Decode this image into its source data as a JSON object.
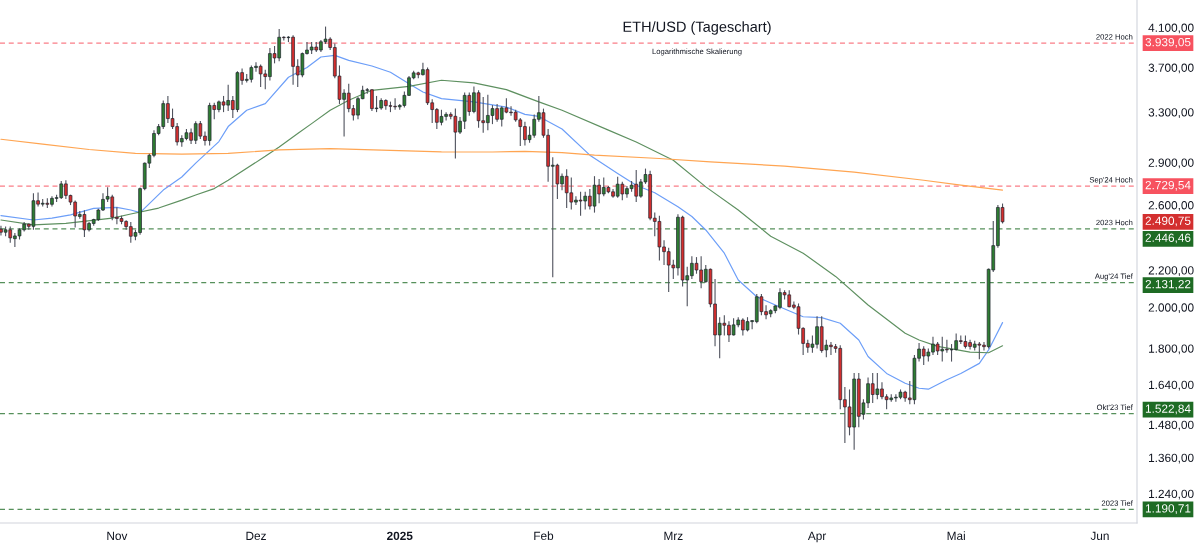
{
  "chart_data": {
    "type": "candlestick",
    "title": "ETH/USD (Tageschart)",
    "subtitle": "Logarithmische Skalierung",
    "x": [
      "2024-10-07",
      "2024-10-08",
      "2024-10-09",
      "2024-10-10",
      "2024-10-11",
      "2024-10-12",
      "2024-10-13",
      "2024-10-14",
      "2024-10-15",
      "2024-10-16",
      "2024-10-17",
      "2024-10-18",
      "2024-10-19",
      "2024-10-20",
      "2024-10-21",
      "2024-10-22",
      "2024-10-23",
      "2024-10-24",
      "2024-10-25",
      "2024-10-26",
      "2024-10-27",
      "2024-10-28",
      "2024-10-29",
      "2024-10-30",
      "2024-10-31",
      "2024-11-01",
      "2024-11-02",
      "2024-11-03",
      "2024-11-04",
      "2024-11-05",
      "2024-11-06",
      "2024-11-07",
      "2024-11-08",
      "2024-11-09",
      "2024-11-10",
      "2024-11-11",
      "2024-11-12",
      "2024-11-13",
      "2024-11-14",
      "2024-11-15",
      "2024-11-16",
      "2024-11-17",
      "2024-11-18",
      "2024-11-19",
      "2024-11-20",
      "2024-11-21",
      "2024-11-22",
      "2024-11-23",
      "2024-11-24",
      "2024-11-25",
      "2024-11-26",
      "2024-11-27",
      "2024-11-28",
      "2024-11-29",
      "2024-11-30",
      "2024-12-01",
      "2024-12-02",
      "2024-12-03",
      "2024-12-04",
      "2024-12-05",
      "2024-12-06",
      "2024-12-07",
      "2024-12-08",
      "2024-12-09",
      "2024-12-10",
      "2024-12-11",
      "2024-12-12",
      "2024-12-13",
      "2024-12-14",
      "2024-12-15",
      "2024-12-16",
      "2024-12-17",
      "2024-12-18",
      "2024-12-19",
      "2024-12-20",
      "2024-12-21",
      "2024-12-22",
      "2024-12-23",
      "2024-12-24",
      "2024-12-25",
      "2024-12-26",
      "2024-12-27",
      "2024-12-28",
      "2024-12-29",
      "2024-12-30",
      "2024-12-31",
      "2025-01-01",
      "2025-01-02",
      "2025-01-03",
      "2025-01-04",
      "2025-01-05",
      "2025-01-06",
      "2025-01-07",
      "2025-01-08",
      "2025-01-09",
      "2025-01-10",
      "2025-01-11",
      "2025-01-12",
      "2025-01-13",
      "2025-01-14",
      "2025-01-15",
      "2025-01-16",
      "2025-01-17",
      "2025-01-18",
      "2025-01-19",
      "2025-01-20",
      "2025-01-21",
      "2025-01-22",
      "2025-01-23",
      "2025-01-24",
      "2025-01-25",
      "2025-01-26",
      "2025-01-27",
      "2025-01-28",
      "2025-01-29",
      "2025-01-30",
      "2025-01-31",
      "2025-02-01",
      "2025-02-02",
      "2025-02-03",
      "2025-02-04",
      "2025-02-05",
      "2025-02-06",
      "2025-02-07",
      "2025-02-08",
      "2025-02-09",
      "2025-02-10",
      "2025-02-11",
      "2025-02-12",
      "2025-02-13",
      "2025-02-14",
      "2025-02-15",
      "2025-02-16",
      "2025-02-17",
      "2025-02-18",
      "2025-02-19",
      "2025-02-20",
      "2025-02-21",
      "2025-02-22",
      "2025-02-23",
      "2025-02-24",
      "2025-02-25",
      "2025-02-26",
      "2025-02-27",
      "2025-02-28",
      "2025-03-01",
      "2025-03-02",
      "2025-03-03",
      "2025-03-04",
      "2025-03-05",
      "2025-03-06",
      "2025-03-07",
      "2025-03-08",
      "2025-03-09",
      "2025-03-10",
      "2025-03-11",
      "2025-03-12",
      "2025-03-13",
      "2025-03-14",
      "2025-03-15",
      "2025-03-16",
      "2025-03-17",
      "2025-03-18",
      "2025-03-19",
      "2025-03-20",
      "2025-03-21",
      "2025-03-22",
      "2025-03-23",
      "2025-03-24",
      "2025-03-25",
      "2025-03-26",
      "2025-03-27",
      "2025-03-28",
      "2025-03-29",
      "2025-03-30",
      "2025-03-31",
      "2025-04-01",
      "2025-04-02",
      "2025-04-03",
      "2025-04-04",
      "2025-04-05",
      "2025-04-06",
      "2025-04-07",
      "2025-04-08",
      "2025-04-09",
      "2025-04-10",
      "2025-04-11",
      "2025-04-12",
      "2025-04-13",
      "2025-04-14",
      "2025-04-15",
      "2025-04-16",
      "2025-04-17",
      "2025-04-18",
      "2025-04-19",
      "2025-04-20",
      "2025-04-21",
      "2025-04-22",
      "2025-04-23",
      "2025-04-24",
      "2025-04-25",
      "2025-04-26",
      "2025-04-27",
      "2025-04-28",
      "2025-04-29",
      "2025-04-30",
      "2025-05-01",
      "2025-05-02",
      "2025-05-03",
      "2025-05-04",
      "2025-05-05",
      "2025-05-06",
      "2025-05-07",
      "2025-05-08",
      "2025-05-09",
      "2025-05-10",
      "2025-05-11"
    ],
    "ohlc": [
      [
        2444,
        2465,
        2405,
        2425
      ],
      [
        2425,
        2460,
        2400,
        2440
      ],
      [
        2440,
        2460,
        2360,
        2390
      ],
      [
        2385,
        2420,
        2335,
        2402
      ],
      [
        2402,
        2450,
        2380,
        2440
      ],
      [
        2440,
        2490,
        2430,
        2476
      ],
      [
        2476,
        2480,
        2440,
        2462
      ],
      [
        2462,
        2680,
        2440,
        2629
      ],
      [
        2629,
        2685,
        2590,
        2606
      ],
      [
        2606,
        2640,
        2590,
        2612
      ],
      [
        2612,
        2645,
        2580,
        2605
      ],
      [
        2605,
        2660,
        2590,
        2645
      ],
      [
        2645,
        2670,
        2620,
        2650
      ],
      [
        2650,
        2765,
        2640,
        2745
      ],
      [
        2745,
        2770,
        2640,
        2665
      ],
      [
        2665,
        2670,
        2600,
        2620
      ],
      [
        2620,
        2630,
        2455,
        2528
      ],
      [
        2525,
        2560,
        2510,
        2538
      ],
      [
        2538,
        2565,
        2395,
        2440
      ],
      [
        2440,
        2490,
        2430,
        2480
      ],
      [
        2480,
        2510,
        2465,
        2505
      ],
      [
        2505,
        2575,
        2495,
        2567
      ],
      [
        2567,
        2680,
        2560,
        2638
      ],
      [
        2640,
        2722,
        2620,
        2658
      ],
      [
        2655,
        2670,
        2500,
        2520
      ],
      [
        2520,
        2585,
        2475,
        2512
      ],
      [
        2512,
        2530,
        2475,
        2493
      ],
      [
        2493,
        2500,
        2440,
        2460
      ],
      [
        2460,
        2490,
        2360,
        2400
      ],
      [
        2400,
        2440,
        2375,
        2423
      ],
      [
        2423,
        2720,
        2410,
        2712
      ],
      [
        2712,
        2900,
        2700,
        2895
      ],
      [
        2895,
        2965,
        2860,
        2954
      ],
      [
        2954,
        3150,
        2940,
        3124
      ],
      [
        3124,
        3200,
        3110,
        3180
      ],
      [
        3180,
        3400,
        3160,
        3373
      ],
      [
        3373,
        3440,
        3210,
        3246
      ],
      [
        3246,
        3330,
        3160,
        3180
      ],
      [
        3180,
        3210,
        3030,
        3057
      ],
      [
        3057,
        3110,
        3020,
        3084
      ],
      [
        3084,
        3160,
        3070,
        3130
      ],
      [
        3130,
        3165,
        3040,
        3070
      ],
      [
        3070,
        3224,
        3040,
        3204
      ],
      [
        3204,
        3225,
        3080,
        3103
      ],
      [
        3103,
        3140,
        3030,
        3068
      ],
      [
        3068,
        3380,
        3030,
        3357
      ],
      [
        3357,
        3380,
        3240,
        3322
      ],
      [
        3322,
        3400,
        3300,
        3388
      ],
      [
        3388,
        3440,
        3300,
        3360
      ],
      [
        3360,
        3540,
        3310,
        3400
      ],
      [
        3400,
        3440,
        3250,
        3322
      ],
      [
        3322,
        3665,
        3300,
        3652
      ],
      [
        3652,
        3690,
        3540,
        3580
      ],
      [
        3580,
        3640,
        3560,
        3590
      ],
      [
        3590,
        3720,
        3560,
        3700
      ],
      [
        3700,
        3750,
        3660,
        3712
      ],
      [
        3712,
        3730,
        3520,
        3640
      ],
      [
        3640,
        3680,
        3500,
        3615
      ],
      [
        3615,
        3890,
        3580,
        3835
      ],
      [
        3835,
        3910,
        3740,
        3792
      ],
      [
        3792,
        4085,
        3760,
        3999
      ],
      [
        3999,
        4010,
        3965,
        3995
      ],
      [
        3995,
        4010,
        3950,
        4000
      ],
      [
        4000,
        4020,
        3540,
        3711
      ],
      [
        3711,
        3780,
        3520,
        3630
      ],
      [
        3630,
        3845,
        3610,
        3835
      ],
      [
        3835,
        3950,
        3825,
        3870
      ],
      [
        3870,
        3950,
        3830,
        3900
      ],
      [
        3900,
        3950,
        3850,
        3870
      ],
      [
        3870,
        3970,
        3850,
        3953
      ],
      [
        3953,
        4110,
        3930,
        3980
      ],
      [
        3980,
        4000,
        3870,
        3895
      ],
      [
        3895,
        3935,
        3600,
        3620
      ],
      [
        3620,
        3720,
        3370,
        3410
      ],
      [
        3410,
        3500,
        3100,
        3465
      ],
      [
        3465,
        3550,
        3300,
        3330
      ],
      [
        3330,
        3360,
        3230,
        3275
      ],
      [
        3275,
        3430,
        3240,
        3416
      ],
      [
        3416,
        3530,
        3410,
        3490
      ],
      [
        3490,
        3510,
        3460,
        3495
      ],
      [
        3495,
        3500,
        3310,
        3330
      ],
      [
        3330,
        3440,
        3300,
        3335
      ],
      [
        3335,
        3420,
        3320,
        3400
      ],
      [
        3400,
        3410,
        3320,
        3355
      ],
      [
        3355,
        3390,
        3300,
        3350
      ],
      [
        3350,
        3420,
        3320,
        3345
      ],
      [
        3345,
        3370,
        3320,
        3357
      ],
      [
        3357,
        3480,
        3340,
        3445
      ],
      [
        3445,
        3620,
        3440,
        3604
      ],
      [
        3604,
        3670,
        3590,
        3650
      ],
      [
        3650,
        3660,
        3600,
        3633
      ],
      [
        3633,
        3745,
        3625,
        3680
      ],
      [
        3680,
        3700,
        3360,
        3380
      ],
      [
        3380,
        3410,
        3210,
        3322
      ],
      [
        3322,
        3335,
        3160,
        3215
      ],
      [
        3215,
        3320,
        3190,
        3264
      ],
      [
        3264,
        3300,
        3230,
        3281
      ],
      [
        3281,
        3300,
        3240,
        3265
      ],
      [
        3265,
        3330,
        2930,
        3135
      ],
      [
        3135,
        3260,
        3120,
        3224
      ],
      [
        3224,
        3470,
        3160,
        3445
      ],
      [
        3445,
        3470,
        3270,
        3305
      ],
      [
        3305,
        3525,
        3290,
        3468
      ],
      [
        3468,
        3490,
        3170,
        3228
      ],
      [
        3228,
        3430,
        3130,
        3212
      ],
      [
        3212,
        3450,
        3150,
        3272
      ],
      [
        3272,
        3360,
        3200,
        3330
      ],
      [
        3330,
        3370,
        3220,
        3240
      ],
      [
        3240,
        3350,
        3180,
        3336
      ],
      [
        3336,
        3420,
        3290,
        3300
      ],
      [
        3300,
        3350,
        3270,
        3295
      ],
      [
        3300,
        3320,
        3220,
        3235
      ],
      [
        3235,
        3250,
        3025,
        3180
      ],
      [
        3180,
        3220,
        3030,
        3075
      ],
      [
        3075,
        3180,
        3050,
        3110
      ],
      [
        3110,
        3280,
        3090,
        3240
      ],
      [
        3240,
        3440,
        3220,
        3295
      ],
      [
        3295,
        3330,
        3090,
        3110
      ],
      [
        3110,
        3160,
        2760,
        2872
      ],
      [
        2872,
        2940,
        2160,
        2880
      ],
      [
        2880,
        2890,
        2640,
        2745
      ],
      [
        2745,
        2820,
        2700,
        2799
      ],
      [
        2799,
        2850,
        2580,
        2683
      ],
      [
        2683,
        2790,
        2570,
        2620
      ],
      [
        2620,
        2660,
        2600,
        2633
      ],
      [
        2633,
        2690,
        2530,
        2627
      ],
      [
        2627,
        2690,
        2570,
        2660
      ],
      [
        2660,
        2710,
        2570,
        2593
      ],
      [
        2593,
        2800,
        2550,
        2736
      ],
      [
        2736,
        2780,
        2612,
        2675
      ],
      [
        2675,
        2790,
        2660,
        2720
      ],
      [
        2720,
        2730,
        2680,
        2690
      ],
      [
        2690,
        2710,
        2650,
        2660
      ],
      [
        2660,
        2795,
        2650,
        2743
      ],
      [
        2743,
        2760,
        2633,
        2675
      ],
      [
        2675,
        2730,
        2650,
        2712
      ],
      [
        2712,
        2765,
        2690,
        2736
      ],
      [
        2743,
        2845,
        2620,
        2660
      ],
      [
        2660,
        2780,
        2650,
        2759
      ],
      [
        2759,
        2855,
        2745,
        2812
      ],
      [
        2812,
        2840,
        2500,
        2514
      ],
      [
        2514,
        2550,
        2400,
        2493
      ],
      [
        2493,
        2530,
        2255,
        2335
      ],
      [
        2335,
        2375,
        2230,
        2307
      ],
      [
        2307,
        2330,
        2080,
        2229
      ],
      [
        2229,
        2260,
        2150,
        2213
      ],
      [
        2213,
        2540,
        2170,
        2520
      ],
      [
        2520,
        2530,
        2110,
        2145
      ],
      [
        2145,
        2220,
        2005,
        2169
      ],
      [
        2169,
        2280,
        2150,
        2239
      ],
      [
        2239,
        2275,
        2180,
        2201
      ],
      [
        2201,
        2280,
        2100,
        2136
      ],
      [
        2136,
        2230,
        2130,
        2205
      ],
      [
        2205,
        2210,
        2000,
        2017
      ],
      [
        2017,
        2150,
        1810,
        1863
      ],
      [
        1863,
        1950,
        1755,
        1920
      ],
      [
        1920,
        1960,
        1860,
        1910
      ],
      [
        1910,
        1930,
        1830,
        1863
      ],
      [
        1863,
        1945,
        1860,
        1912
      ],
      [
        1912,
        1950,
        1900,
        1936
      ],
      [
        1936,
        1945,
        1860,
        1887
      ],
      [
        1887,
        1950,
        1880,
        1928
      ],
      [
        1928,
        1935,
        1890,
        1933
      ],
      [
        1928,
        2070,
        1920,
        2055
      ],
      [
        2055,
        2070,
        1960,
        1978
      ],
      [
        1978,
        2010,
        1940,
        1962
      ],
      [
        1967,
        1990,
        1950,
        1983
      ],
      [
        1983,
        2010,
        1970,
        2007
      ],
      [
        2000,
        2100,
        1990,
        2077
      ],
      [
        2077,
        2090,
        2040,
        2065
      ],
      [
        2065,
        2090,
        2000,
        2003
      ],
      [
        2012,
        2030,
        1990,
        2000
      ],
      [
        2003,
        2020,
        1865,
        1895
      ],
      [
        1895,
        1900,
        1770,
        1823
      ],
      [
        1823,
        1840,
        1780,
        1805
      ],
      [
        1805,
        1860,
        1780,
        1820
      ],
      [
        1819,
        1955,
        1800,
        1903
      ],
      [
        1903,
        1955,
        1780,
        1790
      ],
      [
        1793,
        1840,
        1760,
        1815
      ],
      [
        1815,
        1830,
        1770,
        1808
      ],
      [
        1808,
        1820,
        1780,
        1800
      ],
      [
        1800,
        1815,
        1540,
        1578
      ],
      [
        1578,
        1630,
        1412,
        1549
      ],
      [
        1549,
        1620,
        1440,
        1471
      ],
      [
        1471,
        1690,
        1388,
        1664
      ],
      [
        1664,
        1690,
        1470,
        1512
      ],
      [
        1520,
        1580,
        1500,
        1565
      ],
      [
        1565,
        1670,
        1545,
        1644
      ],
      [
        1644,
        1690,
        1565,
        1599
      ],
      [
        1599,
        1690,
        1580,
        1622
      ],
      [
        1622,
        1650,
        1580,
        1590
      ],
      [
        1590,
        1600,
        1540,
        1578
      ],
      [
        1578,
        1600,
        1570,
        1585
      ],
      [
        1585,
        1600,
        1570,
        1588
      ],
      [
        1588,
        1620,
        1580,
        1609
      ],
      [
        1609,
        1615,
        1570,
        1585
      ],
      [
        1585,
        1655,
        1560,
        1578
      ],
      [
        1578,
        1770,
        1560,
        1755
      ],
      [
        1755,
        1825,
        1740,
        1797
      ],
      [
        1797,
        1810,
        1725,
        1765
      ],
      [
        1765,
        1800,
        1740,
        1783
      ],
      [
        1783,
        1855,
        1770,
        1820
      ],
      [
        1820,
        1830,
        1770,
        1788
      ],
      [
        1788,
        1855,
        1740,
        1796
      ],
      [
        1796,
        1840,
        1780,
        1793
      ],
      [
        1793,
        1820,
        1740,
        1795
      ],
      [
        1795,
        1870,
        1790,
        1836
      ],
      [
        1836,
        1860,
        1820,
        1832
      ],
      [
        1832,
        1860,
        1800,
        1809
      ],
      [
        1827,
        1840,
        1795,
        1809
      ],
      [
        1805,
        1835,
        1790,
        1820
      ],
      [
        1820,
        1830,
        1750,
        1815
      ],
      [
        1815,
        1830,
        1790,
        1808
      ],
      [
        1808,
        2210,
        1800,
        2205
      ],
      [
        2201,
        2495,
        2190,
        2343
      ],
      [
        2343,
        2600,
        2330,
        2584
      ],
      [
        2584,
        2610,
        2480,
        2490.75
      ]
    ],
    "value_labels": [
      null,
      null,
      null,
      null,
      null,
      null,
      null,
      null,
      null,
      null,
      null,
      null,
      null,
      null,
      null,
      null,
      null,
      null,
      null,
      null,
      null,
      null,
      null,
      null,
      null,
      null,
      null,
      null,
      null,
      null,
      null,
      null,
      null,
      null,
      null,
      null,
      null,
      null,
      null,
      null,
      null,
      null,
      null,
      null,
      null,
      null,
      null,
      null,
      null,
      null,
      null,
      null,
      null,
      null,
      null,
      null,
      null,
      null,
      null,
      null,
      null,
      null,
      null,
      null,
      null,
      null,
      null,
      null,
      null,
      null,
      null,
      null,
      null,
      null,
      null,
      null,
      null,
      null,
      null,
      null,
      null,
      null,
      null,
      null,
      null,
      null,
      null,
      null,
      null,
      null,
      null,
      null,
      null,
      null,
      null,
      null,
      null,
      null,
      null,
      null,
      null,
      null,
      null,
      null,
      null,
      null,
      null,
      null,
      null,
      null,
      null,
      null,
      null,
      null,
      null,
      null,
      null,
      null,
      null,
      null,
      null,
      null,
      null,
      null,
      null,
      null,
      null,
      null,
      null,
      null,
      null,
      null,
      null,
      null,
      null,
      null,
      null,
      null,
      null,
      null,
      null,
      null,
      null,
      null,
      null,
      null,
      null,
      null,
      null,
      null,
      null,
      null,
      null,
      null,
      null,
      null,
      null,
      null,
      null,
      null,
      null,
      null,
      null,
      null,
      null,
      null,
      null,
      null,
      null,
      null,
      null,
      null,
      null,
      null,
      null,
      null,
      null,
      null,
      null,
      null,
      null,
      null,
      null,
      null,
      null,
      null,
      null,
      null,
      null,
      null,
      null,
      null,
      null,
      null,
      null,
      null,
      null,
      null,
      null,
      null,
      null,
      null,
      null,
      null,
      null,
      null,
      null,
      null,
      null,
      null,
      null,
      null,
      null,
      null,
      null,
      null,
      "2.490,75"
    ],
    "series": [
      {
        "type": "line",
        "color": "#6c9ef8",
        "x": [
          "2024-10-07",
          "2024-10-14",
          "2024-10-18",
          "2024-10-22",
          "2024-10-27",
          "2024-11-01",
          "2024-11-04",
          "2024-11-06",
          "2024-11-11",
          "2024-11-15",
          "2024-11-18",
          "2024-11-23",
          "2024-11-25",
          "2024-11-29",
          "2024-12-03",
          "2024-12-08",
          "2024-12-12",
          "2024-12-15",
          "2024-12-18",
          "2024-12-21",
          "2024-12-26",
          "2024-12-30",
          "2025-01-03",
          "2025-01-06",
          "2025-01-10",
          "2025-01-17",
          "2025-01-24",
          "2025-01-28",
          "2025-01-31",
          "2025-02-05",
          "2025-02-11",
          "2025-02-17",
          "2025-02-21",
          "2025-02-25",
          "2025-03-02",
          "2025-03-05",
          "2025-03-08",
          "2025-03-12",
          "2025-03-15",
          "2025-03-19",
          "2025-03-23",
          "2025-03-29",
          "2025-04-02",
          "2025-04-06",
          "2025-04-10",
          "2025-04-12",
          "2025-04-16",
          "2025-04-20",
          "2025-04-23",
          "2025-04-25",
          "2025-04-29",
          "2025-05-02",
          "2025-05-06",
          "2025-05-08",
          "2025-05-11"
        ],
        "values": [
          2530,
          2502,
          2514,
          2535,
          2578,
          2585,
          2567,
          2550,
          2702,
          2794,
          2895,
          3060,
          3180,
          3316,
          3373,
          3609,
          3700,
          3801,
          3817,
          3769,
          3715,
          3655,
          3550,
          3475,
          3416,
          3388,
          3343,
          3281,
          3264,
          3160,
          2955,
          2820,
          2736,
          2683,
          2588,
          2525,
          2439,
          2298,
          2145,
          2055,
          2012,
          1952,
          1948,
          1920,
          1839,
          1763,
          1688,
          1646,
          1625,
          1621,
          1661,
          1688,
          1732,
          1793,
          1923
        ]
      },
      {
        "type": "line",
        "color": "#5e9060",
        "x": [
          "2024-10-07",
          "2024-10-14",
          "2024-10-21",
          "2024-10-31",
          "2024-11-04",
          "2024-11-10",
          "2024-11-15",
          "2024-11-18",
          "2024-11-22",
          "2024-11-25",
          "2024-12-03",
          "2024-12-06",
          "2024-12-10",
          "2024-12-13",
          "2024-12-17",
          "2024-12-21",
          "2024-12-26",
          "2025-01-03",
          "2025-01-10",
          "2025-01-17",
          "2025-01-24",
          "2025-01-31",
          "2025-02-05",
          "2025-02-15",
          "2025-02-21",
          "2025-03-01",
          "2025-03-08",
          "2025-03-15",
          "2025-03-22",
          "2025-03-29",
          "2025-04-05",
          "2025-04-12",
          "2025-04-20",
          "2025-04-23",
          "2025-04-27",
          "2025-05-04",
          "2025-05-08",
          "2025-05-11"
        ],
        "values": [
          2502,
          2471,
          2481,
          2514,
          2541,
          2580,
          2633,
          2668,
          2712,
          2771,
          2946,
          3018,
          3124,
          3204,
          3316,
          3402,
          3490,
          3526,
          3581,
          3557,
          3496,
          3388,
          3316,
          3151,
          3057,
          2917,
          2724,
          2567,
          2400,
          2298,
          2165,
          2012,
          1871,
          1839,
          1809,
          1783,
          1780,
          1812
        ]
      },
      {
        "type": "line",
        "color": "#ffa552",
        "x": [
          "2024-10-07",
          "2024-10-16",
          "2024-10-26",
          "2024-11-05",
          "2024-11-15",
          "2024-11-25",
          "2024-12-06",
          "2024-12-17",
          "2024-12-30",
          "2025-01-10",
          "2025-01-21",
          "2025-01-28",
          "2025-02-05",
          "2025-02-12",
          "2025-02-26",
          "2025-03-09",
          "2025-03-25",
          "2025-04-09",
          "2025-04-24",
          "2025-05-02",
          "2025-05-11"
        ],
        "values": [
          3078,
          3040,
          2998,
          2968,
          2963,
          2968,
          2995,
          3005,
          2992,
          2980,
          2979,
          2984,
          2975,
          2955,
          2930,
          2905,
          2873,
          2829,
          2771,
          2736,
          2702
        ]
      }
    ],
    "log": "y",
    "ylim": [
      1150,
      4400
    ],
    "yticks": [
      {
        "value": 4100,
        "label": "4.100,00"
      },
      {
        "value": 3700,
        "label": "3.700,00"
      },
      {
        "value": 3300,
        "label": "3.300,00"
      },
      {
        "value": 2900,
        "label": "2.900,00"
      },
      {
        "value": 2600,
        "label": "2.600,00"
      },
      {
        "value": 2200,
        "label": "2.200,00"
      },
      {
        "value": 2000,
        "label": "2.000,00"
      },
      {
        "value": 1800,
        "label": "1.800,00"
      },
      {
        "value": 1640,
        "label": "1.640,00"
      },
      {
        "value": 1480,
        "label": "1.480,00"
      },
      {
        "value": 1360,
        "label": "1.360,00"
      },
      {
        "value": 1240,
        "label": "1.240,00"
      }
    ],
    "xlim": [
      "2024-10-06T19:00",
      "2025-06-09"
    ],
    "xticks": [
      {
        "value": "2024-11-01",
        "label": "Nov"
      },
      {
        "value": "2024-12-01",
        "label": "Dez"
      },
      {
        "value": "2025-01-01",
        "label": "2025"
      },
      {
        "value": "2025-02-01",
        "label": "Feb"
      },
      {
        "value": "2025-03-01",
        "label": "Mrz"
      },
      {
        "value": "2025-04-01",
        "label": "Apr"
      },
      {
        "value": "2025-05-01",
        "label": "Mai"
      },
      {
        "value": "2025-06-01",
        "label": "Jun"
      }
    ],
    "ref_lines": [
      {
        "axis": "y",
        "value": 3939.05,
        "label": "2022 Hoch",
        "color": "#f7525f",
        "line_style": "dashed"
      },
      {
        "axis": "y",
        "value": 2729.54,
        "label": "Sep'24 Hoch",
        "color": "#f7525f",
        "line_style": "dashed"
      },
      {
        "axis": "y",
        "value": 2446.46,
        "label": "2023 Hoch",
        "color": "#1e6b24",
        "line_style": "dashed"
      },
      {
        "axis": "y",
        "value": 2131.22,
        "label": "Aug'24 Tief",
        "color": "#1e6b24",
        "line_style": "dashed"
      },
      {
        "axis": "y",
        "value": 1522.84,
        "label": "Okt'23 Tief",
        "color": "#1e6b24",
        "line_style": "dashed"
      },
      {
        "axis": "y",
        "value": 1190.71,
        "label": "2023 Tief",
        "color": "#1e6b24",
        "line_style": "dashed"
      }
    ],
    "annotations": [
      "3.939,05",
      "2.729,54",
      "2.446,46",
      "2.131,22",
      "1.522,84",
      "1.190,71"
    ]
  }
}
